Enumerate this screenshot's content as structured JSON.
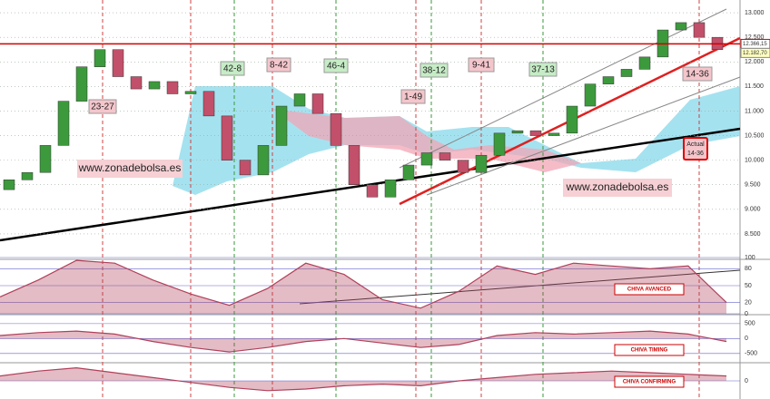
{
  "chart_data": [
    {
      "type": "candlestick",
      "categories": [
        null,
        null,
        null,
        null,
        null,
        null,
        null,
        null,
        null,
        null,
        null,
        null,
        null,
        null,
        null,
        null,
        null,
        null,
        null,
        null,
        null,
        null,
        null,
        null,
        null,
        null,
        null,
        null,
        null,
        null,
        null,
        null,
        null,
        null,
        null,
        null,
        null,
        null,
        null,
        null
      ],
      "open": [
        9400,
        9600,
        9750,
        10300,
        11200,
        11900,
        12250,
        11700,
        11450,
        11600,
        11350,
        11400,
        10900,
        10000,
        9700,
        10300,
        11100,
        11350,
        10950,
        10300,
        9500,
        9250,
        9600,
        9900,
        10150,
        10000,
        9750,
        10100,
        10550,
        10600,
        10500,
        10550,
        11100,
        11550,
        11700,
        11850,
        12100,
        12650,
        12800,
        12500
      ],
      "close": [
        9600,
        9750,
        10300,
        11200,
        11900,
        12250,
        11700,
        11450,
        11600,
        11350,
        11400,
        10900,
        10000,
        9700,
        10300,
        11100,
        11350,
        10950,
        10300,
        9500,
        9250,
        9600,
        9900,
        10150,
        10000,
        9750,
        10100,
        10550,
        10600,
        10500,
        10550,
        11100,
        11550,
        11700,
        11850,
        12100,
        12650,
        12800,
        12500,
        12250
      ],
      "up_color": "#3c9a3c",
      "down_color": "#c2506a",
      "ylim": [
        8000,
        13260
      ],
      "yticks": [
        {
          "value": 13000,
          "label": "13.000"
        },
        {
          "value": 12500,
          "label": "12.500"
        },
        {
          "value": 12000,
          "label": "12.000"
        },
        {
          "value": 11500,
          "label": "11.500"
        },
        {
          "value": 11000,
          "label": "11.000"
        },
        {
          "value": 10500,
          "label": "10.500"
        },
        {
          "value": 10000,
          "label": "10.000"
        },
        {
          "value": 9500,
          "label": "9.500"
        },
        {
          "value": 9000,
          "label": "9.000"
        },
        {
          "value": 8500,
          "label": "8.500"
        }
      ],
      "hline": {
        "value": 12366.15,
        "label": "12.366,15",
        "color": "#d40000"
      },
      "last_price": {
        "value": 12182.7,
        "label": "12.182,70"
      },
      "annotations": [
        "23-27",
        "42-8",
        "8-42",
        "46-4",
        "1-49",
        "38-12",
        "9-41",
        "37-13",
        "14-36",
        "Actual",
        "14-36"
      ],
      "watermark": "www.zonadebolsa.es"
    },
    {
      "type": "line",
      "title": "CHIVA AVANCED",
      "color": "#b0405a",
      "categories": [
        null,
        null,
        null,
        null,
        null,
        null,
        null,
        null,
        null,
        null,
        null,
        null,
        null,
        null,
        null,
        null,
        null,
        null,
        null,
        null
      ],
      "values": [
        30,
        60,
        95,
        90,
        60,
        35,
        15,
        45,
        90,
        70,
        25,
        10,
        40,
        85,
        70,
        90,
        85,
        80,
        85,
        20
      ],
      "ylim": [
        0,
        100
      ],
      "yticks": [
        100,
        80,
        50,
        20,
        0
      ]
    },
    {
      "type": "line",
      "title": "CHIVA TIMING",
      "color": "#b0405a",
      "categories": [
        null,
        null,
        null,
        null,
        null,
        null,
        null,
        null,
        null,
        null,
        null,
        null,
        null,
        null,
        null,
        null,
        null,
        null,
        null,
        null
      ],
      "values": [
        100,
        200,
        250,
        150,
        -100,
        -300,
        -450,
        -300,
        -100,
        0,
        -150,
        -300,
        -200,
        100,
        200,
        150,
        200,
        250,
        150,
        -100
      ],
      "ylim": [
        -750,
        770
      ],
      "yticks": [
        500,
        0,
        -500
      ]
    },
    {
      "type": "line",
      "title": "CHIVA CONFIRMING",
      "color": "#b0405a",
      "categories": [
        null,
        null,
        null,
        null,
        null,
        null,
        null,
        null,
        null,
        null,
        null,
        null,
        null,
        null,
        null,
        null,
        null,
        null,
        null,
        null
      ],
      "values": [
        0.3,
        0.6,
        0.8,
        0.5,
        0.2,
        -0.1,
        -0.4,
        -0.6,
        -0.5,
        -0.3,
        -0.2,
        -0.3,
        0,
        0.2,
        0.4,
        0.5,
        0.6,
        0.5,
        0.4,
        0.3
      ],
      "ylim": [
        -1,
        1
      ],
      "yticks": [
        0
      ]
    }
  ]
}
